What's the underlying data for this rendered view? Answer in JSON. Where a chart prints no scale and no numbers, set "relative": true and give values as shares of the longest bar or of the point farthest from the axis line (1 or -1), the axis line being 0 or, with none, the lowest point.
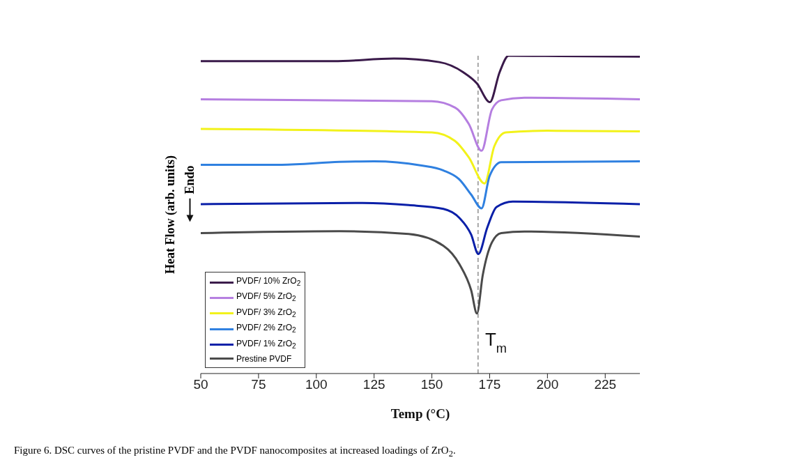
{
  "chart_data": {
    "type": "line",
    "relative": true,
    "xlabel": "Temp (°C)",
    "ylabel": "Heat Flow (arb. units)",
    "xlim": [
      50,
      240
    ],
    "xticks": [
      50,
      75,
      100,
      125,
      150,
      175,
      200,
      225
    ],
    "legend": "bottom left",
    "marker": "none",
    "line_style": "solid",
    "ref_lines": [
      {
        "axis": "x",
        "value": 170,
        "label": "T$_{m}$",
        "color": "#555555",
        "line_style": "dashed"
      }
    ],
    "annotations": [
      "Endo",
      "Figure 6. DSC curves of the pristine PVDF and the PVDF nanocomposites at increased loadings of ZrO$_{2}$."
    ],
    "series": [
      {
        "name": "PVDF/ 10% ZrO$_{2}$",
        "color": "#3a1a4a",
        "x": [
          50,
          107.5,
          133.6,
          153.2,
          163.6,
          169.5,
          175.1,
          179.3,
          183.2,
          205.4,
          240
        ],
        "values": [
          0.983,
          0.983,
          0.991,
          0.98,
          0.948,
          0.913,
          0.854,
          0.948,
          1.0,
          0.999,
          0.997
        ]
      },
      {
        "name": "PVDF/ 5% ZrO$_{2}$",
        "color": "#b57ee0",
        "x": [
          50,
          150,
          160,
          166,
          171.5,
          176,
          180,
          190,
          240
        ],
        "values": [
          0.863,
          0.857,
          0.837,
          0.785,
          0.701,
          0.831,
          0.86,
          0.868,
          0.863
        ]
      },
      {
        "name": "PVDF/ 3% ZrO$_{2}$",
        "color": "#f2f21a",
        "x": [
          50,
          150,
          160,
          166,
          172.8,
          177,
          182,
          200,
          240
        ],
        "values": [
          0.77,
          0.759,
          0.732,
          0.68,
          0.598,
          0.715,
          0.759,
          0.764,
          0.762
        ]
      },
      {
        "name": "PVDF/ 2% ZrO$_{2}$",
        "color": "#2f80e0",
        "x": [
          50,
          85,
          110,
          125,
          145,
          155,
          162,
          167,
          171.5,
          175,
          180,
          240
        ],
        "values": [
          0.657,
          0.657,
          0.666,
          0.668,
          0.655,
          0.639,
          0.61,
          0.563,
          0.52,
          0.622,
          0.665,
          0.668
        ]
      },
      {
        "name": "PVDF/ 1% ZrO$_{2}$",
        "color": "#0a1fa8",
        "x": [
          50,
          120,
          140,
          155,
          162,
          167,
          170.1,
          174,
          178,
          185,
          240
        ],
        "values": [
          0.533,
          0.537,
          0.53,
          0.518,
          0.489,
          0.437,
          0.376,
          0.46,
          0.524,
          0.541,
          0.533
        ]
      },
      {
        "name": "Prestine PVDF",
        "color": "#4a4a4a",
        "x": [
          50,
          110,
          140,
          155,
          162,
          167,
          169.5,
          172,
          176,
          180,
          190,
          240
        ],
        "values": [
          0.442,
          0.448,
          0.439,
          0.402,
          0.343,
          0.262,
          0.189,
          0.309,
          0.413,
          0.442,
          0.447,
          0.431
        ]
      }
    ]
  }
}
